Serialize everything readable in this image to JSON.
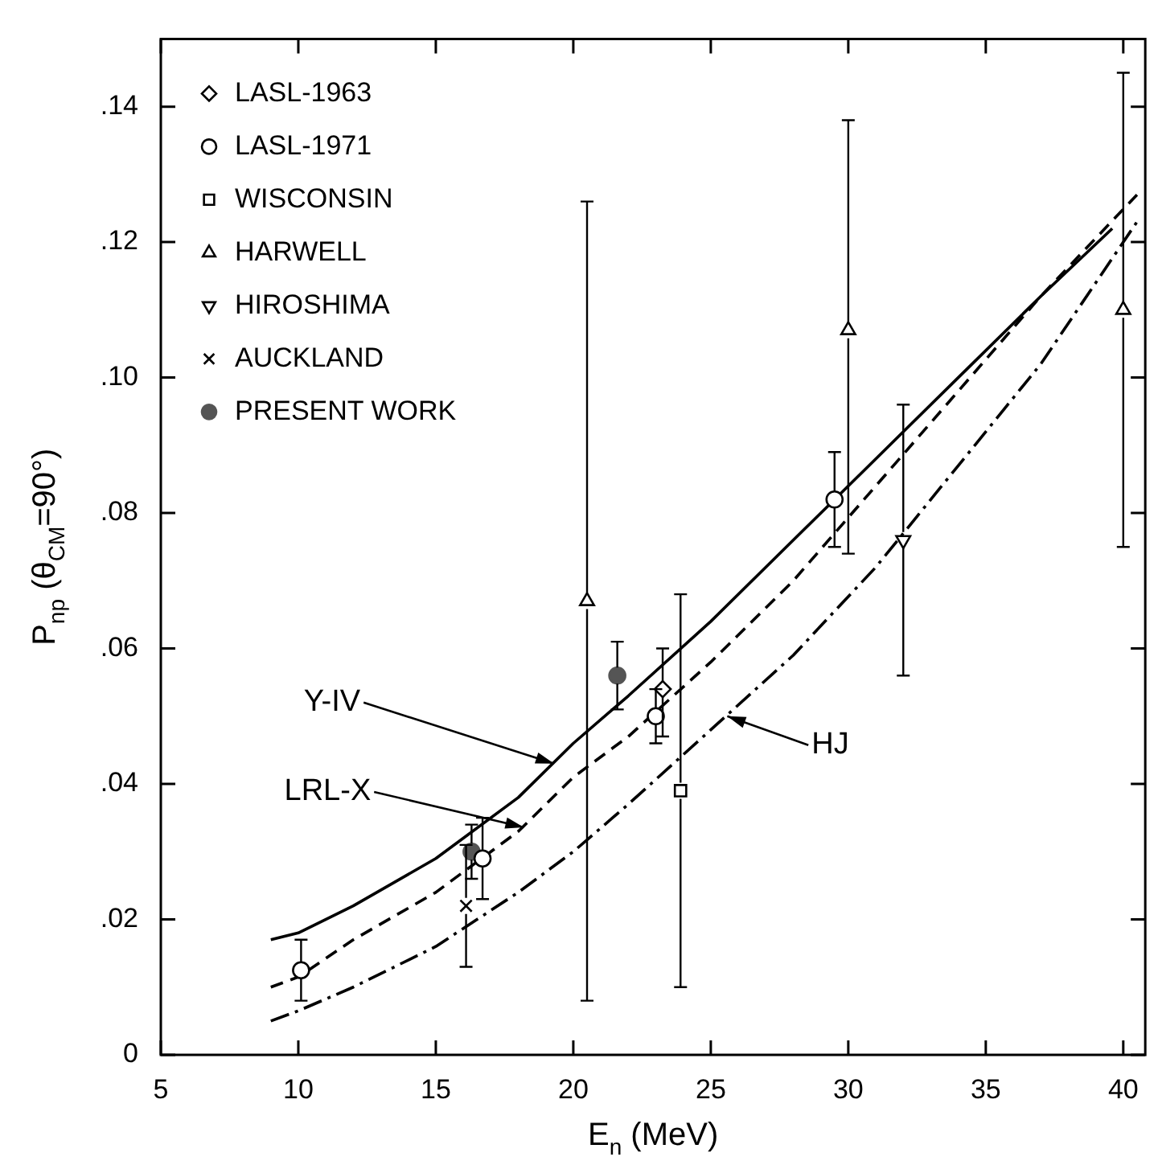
{
  "chart_data": {
    "type": "scatter",
    "color": "#000000",
    "xlabel": "E$_{n}$ (MeV)",
    "ylabel": "P$_{np}$ (θ$_{CM}$=90°)",
    "xlim": [
      5,
      40.8
    ],
    "xticks": [
      5,
      10,
      15,
      20,
      25,
      30,
      35,
      40
    ],
    "ylim": [
      0,
      0.15
    ],
    "yticks": [
      {
        "value": 0,
        "label": "0"
      },
      {
        "value": 0.02,
        "label": ".02"
      },
      {
        "value": 0.04,
        "label": ".04"
      },
      {
        "value": 0.06,
        "label": ".06"
      },
      {
        "value": 0.08,
        "label": ".08"
      },
      {
        "value": 0.1,
        "label": ".10"
      },
      {
        "value": 0.12,
        "label": ".12"
      },
      {
        "value": 0.14,
        "label": ".14"
      }
    ],
    "grid": false,
    "legend": "top left",
    "series": [
      {
        "name": "LASL-1963",
        "marker": "diamond",
        "color": "#000000",
        "x": [
          23.25
        ],
        "values": [
          0.054
        ],
        "errors": [
          [
            0.047,
            0.06
          ]
        ]
      },
      {
        "name": "LASL-1971",
        "marker": "circle",
        "color": "#000000",
        "x": [
          10.1,
          16.7,
          23.0,
          29.5
        ],
        "values": [
          0.0125,
          0.029,
          0.05,
          0.082
        ],
        "errors": [
          [
            0.008,
            0.017
          ],
          [
            0.023,
            0.035
          ],
          [
            0.046,
            0.054
          ],
          [
            0.075,
            0.089
          ]
        ]
      },
      {
        "name": "WISCONSIN",
        "marker": "square",
        "color": "#000000",
        "x": [
          23.9
        ],
        "values": [
          0.039
        ],
        "errors": [
          [
            0.01,
            0.068
          ]
        ]
      },
      {
        "name": "HARWELL",
        "marker": "triangle",
        "color": "#000000",
        "x": [
          20.5,
          30,
          40
        ],
        "values": [
          0.067,
          0.107,
          0.11
        ],
        "errors": [
          [
            0.008,
            0.126
          ],
          [
            0.074,
            0.138
          ],
          [
            0.075,
            0.145
          ]
        ]
      },
      {
        "name": "HIROSHIMA",
        "marker": "triangle-down",
        "color": "#000000",
        "x": [
          32
        ],
        "values": [
          0.076
        ],
        "errors": [
          [
            0.056,
            0.096
          ]
        ]
      },
      {
        "name": "AUCKLAND",
        "marker": "cross",
        "color": "#000000",
        "x": [
          16.1
        ],
        "values": [
          0.022
        ],
        "errors": [
          [
            0.013,
            0.031
          ]
        ]
      },
      {
        "name": "PRESENT WORK",
        "marker": "circle",
        "color": "#555555",
        "x": [
          16.3,
          21.6
        ],
        "values": [
          0.03,
          0.056
        ],
        "errors": [
          [
            0.026,
            0.034
          ],
          [
            0.051,
            0.061
          ]
        ]
      },
      {
        "type": "line",
        "line_style": "solid",
        "marker": "none",
        "color": "#000000",
        "x": [
          9,
          10,
          12,
          15,
          18,
          20,
          22,
          25,
          28,
          31,
          34,
          37,
          39.6
        ],
        "values": [
          0.017,
          0.018,
          0.022,
          0.029,
          0.038,
          0.046,
          0.053,
          0.064,
          0.076,
          0.088,
          0.1,
          0.112,
          0.122
        ]
      },
      {
        "type": "line",
        "line_style": "dashed",
        "marker": "none",
        "color": "#000000",
        "x": [
          9,
          10,
          12,
          15,
          18,
          20,
          22,
          25,
          28,
          31,
          34,
          37,
          40.5
        ],
        "values": [
          0.01,
          0.0115,
          0.017,
          0.024,
          0.033,
          0.041,
          0.047,
          0.058,
          0.07,
          0.084,
          0.098,
          0.112,
          0.127
        ]
      },
      {
        "type": "line",
        "line_style": "dashdot",
        "marker": "none",
        "color": "#000000",
        "x": [
          9,
          10,
          12,
          15,
          18,
          20,
          22,
          25,
          28,
          31,
          34,
          37,
          40.5
        ],
        "values": [
          0.005,
          0.0065,
          0.01,
          0.016,
          0.024,
          0.03,
          0.037,
          0.048,
          0.059,
          0.072,
          0.087,
          0.102,
          0.123
        ]
      }
    ],
    "annotations": [
      {
        "text": "Y-IV",
        "x": 19.3,
        "y": 0.043
      },
      {
        "text": "LRL-X",
        "x": 18.2,
        "y": 0.0336
      },
      {
        "text": "HJ",
        "x": 25.6,
        "y": 0.05
      }
    ]
  }
}
